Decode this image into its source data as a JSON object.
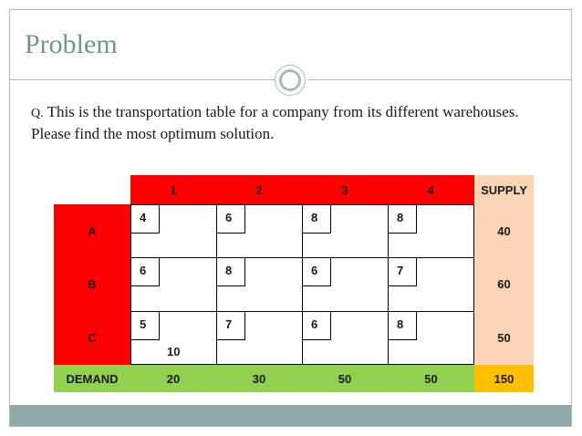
{
  "slide": {
    "title": "Problem",
    "question_prefix": "Q.",
    "question_text": " This is the transportation table for a company  from its different warehouses. Please find the most optimum solution."
  },
  "table": {
    "destinations": [
      "1",
      "2",
      "3",
      "4"
    ],
    "supply_header": "SUPPLY",
    "demand_label": "DEMAND",
    "rows": [
      {
        "source": "A",
        "costs": [
          "4",
          "6",
          "8",
          "8"
        ],
        "supply": "40",
        "allocations": [
          "",
          "",
          "",
          ""
        ]
      },
      {
        "source": "B",
        "costs": [
          "6",
          "8",
          "6",
          "7"
        ],
        "supply": "60",
        "allocations": [
          "",
          "",
          "",
          ""
        ]
      },
      {
        "source": "C",
        "costs": [
          "5",
          "7",
          "6",
          "8"
        ],
        "supply": "50",
        "allocations": [
          "10",
          "",
          "",
          ""
        ]
      }
    ],
    "demand": [
      "20",
      "30",
      "50",
      "50"
    ],
    "total": "150"
  },
  "colors": {
    "header_red": "#ff0000",
    "supply_peach": "#fcd5b5",
    "demand_green": "#92d050",
    "total_gold": "#ffc000",
    "accent_teal": "#6f9494"
  }
}
